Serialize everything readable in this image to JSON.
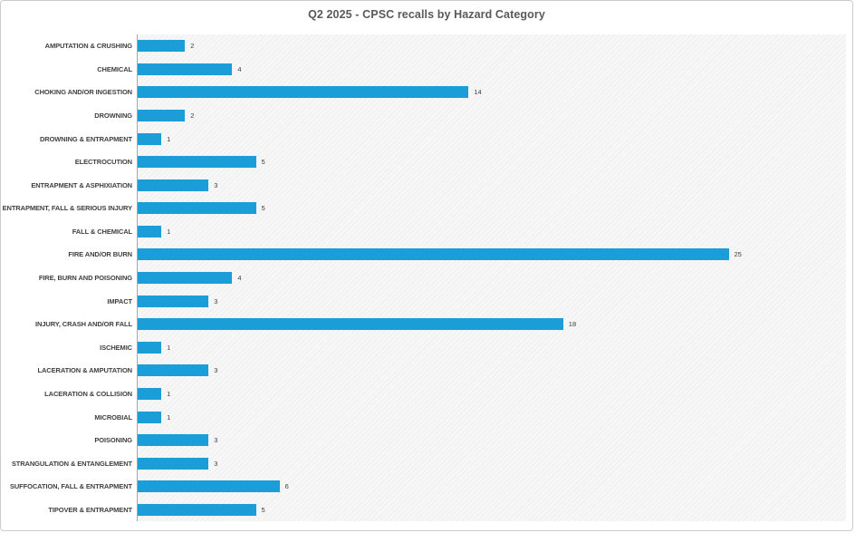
{
  "chart_data": {
    "type": "bar",
    "orientation": "horizontal",
    "title": "Q2 2025 - CPSC recalls by Hazard Category",
    "categories": [
      "AMPUTATION & CRUSHING",
      "CHEMICAL",
      "CHOKING AND/OR INGESTION",
      "DROWNING",
      "DROWNING & ENTRAPMENT",
      "ELECTROCUTION",
      "ENTRAPMENT & ASPHIXIATION",
      "ENTRAPMENT, FALL & SERIOUS INJURY",
      "FALL & CHEMICAL",
      "FIRE AND/OR BURN",
      "FIRE, BURN AND POISONING",
      "IMPACT",
      "INJURY, CRASH AND/OR FALL",
      "ISCHEMIC",
      "LACERATION & AMPUTATION",
      "LACERATION & COLLISION",
      "MICROBIAL",
      "POISONING",
      "STRANGULATION & ENTANGLEMENT",
      "SUFFOCATION, FALL & ENTRAPMENT",
      "TIPOVER & ENTRAPMENT"
    ],
    "values": [
      2,
      4,
      14,
      2,
      1,
      5,
      3,
      5,
      1,
      25,
      4,
      3,
      18,
      1,
      3,
      1,
      1,
      3,
      3,
      6,
      5
    ],
    "xlabel": "",
    "ylabel": "",
    "xlim": [
      0,
      30
    ],
    "grid": false,
    "legend": false,
    "value_labels_shown": true,
    "colors": {
      "bar": "#1B9DD8",
      "title_text": "#595959",
      "category_text": "#404040",
      "value_text": "#404040",
      "axis_line": "#a6a6a6",
      "plot_background": "#f7f7f7"
    }
  }
}
